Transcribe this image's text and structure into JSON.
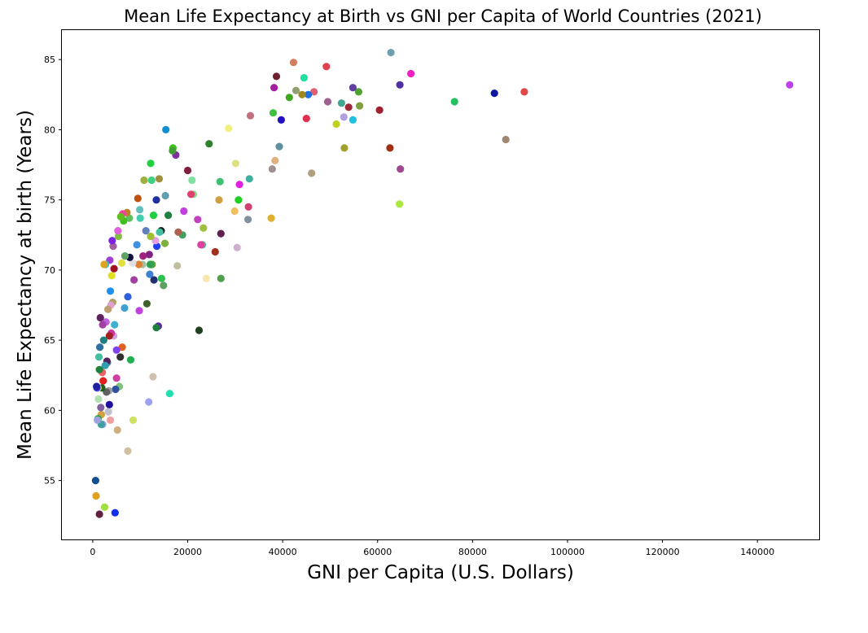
{
  "chart_data": {
    "type": "scatter",
    "title": "Mean Life Expectancy at Birth vs GNI per Capita of World Countries (2021)",
    "xlabel": "GNI per Capita (U.S. Dollars)",
    "ylabel": "Mean Life Expectancy at birth (Years)",
    "xlim": [
      -6500,
      153000
    ],
    "ylim": [
      50.8,
      87.1
    ],
    "xticks": [
      0,
      20000,
      40000,
      60000,
      80000,
      100000,
      120000,
      140000
    ],
    "yticks": [
      55,
      60,
      65,
      70,
      75,
      80,
      85
    ],
    "grid": false,
    "legend": "none",
    "points": [
      {
        "x": 146800,
        "y": 83.2,
        "color": "#c040e8"
      },
      {
        "x": 90900,
        "y": 82.7,
        "color": "#e04848"
      },
      {
        "x": 87000,
        "y": 79.3,
        "color": "#a08870"
      },
      {
        "x": 84600,
        "y": 82.6,
        "color": "#1018a0"
      },
      {
        "x": 76200,
        "y": 82.0,
        "color": "#22c060"
      },
      {
        "x": 67000,
        "y": 84.0,
        "color": "#f020c0"
      },
      {
        "x": 64700,
        "y": 83.2,
        "color": "#5030a0"
      },
      {
        "x": 64800,
        "y": 77.2,
        "color": "#a04890"
      },
      {
        "x": 64600,
        "y": 74.7,
        "color": "#a8e840"
      },
      {
        "x": 62800,
        "y": 85.5,
        "color": "#70a0b0"
      },
      {
        "x": 62600,
        "y": 78.7,
        "color": "#a03010"
      },
      {
        "x": 60400,
        "y": 81.4,
        "color": "#a02030"
      },
      {
        "x": 56000,
        "y": 82.7,
        "color": "#50a030"
      },
      {
        "x": 56200,
        "y": 81.7,
        "color": "#80a040"
      },
      {
        "x": 54800,
        "y": 83.0,
        "color": "#6040a0"
      },
      {
        "x": 54800,
        "y": 80.7,
        "color": "#20c0e0"
      },
      {
        "x": 53900,
        "y": 81.6,
        "color": "#a02838"
      },
      {
        "x": 52900,
        "y": 80.9,
        "color": "#b0a0e0"
      },
      {
        "x": 52400,
        "y": 81.9,
        "color": "#40a890"
      },
      {
        "x": 53000,
        "y": 78.7,
        "color": "#a0a030"
      },
      {
        "x": 51300,
        "y": 80.4,
        "color": "#c0d020"
      },
      {
        "x": 49500,
        "y": 82.0,
        "color": "#a06090"
      },
      {
        "x": 49200,
        "y": 84.5,
        "color": "#e04050"
      },
      {
        "x": 46600,
        "y": 82.7,
        "color": "#e06070"
      },
      {
        "x": 46100,
        "y": 76.9,
        "color": "#b0a080"
      },
      {
        "x": 45400,
        "y": 82.5,
        "color": "#2070e0"
      },
      {
        "x": 45000,
        "y": 80.8,
        "color": "#e03050"
      },
      {
        "x": 44500,
        "y": 83.7,
        "color": "#20e0a0"
      },
      {
        "x": 44100,
        "y": 82.5,
        "color": "#a08820"
      },
      {
        "x": 42800,
        "y": 82.8,
        "color": "#90a070"
      },
      {
        "x": 42300,
        "y": 84.8,
        "color": "#d08060"
      },
      {
        "x": 41400,
        "y": 82.3,
        "color": "#40a820"
      },
      {
        "x": 39700,
        "y": 80.7,
        "color": "#2010c0"
      },
      {
        "x": 39300,
        "y": 78.8,
        "color": "#6090a0"
      },
      {
        "x": 38700,
        "y": 83.8,
        "color": "#702030"
      },
      {
        "x": 38200,
        "y": 83.0,
        "color": "#a020a0"
      },
      {
        "x": 38000,
        "y": 81.2,
        "color": "#40c040"
      },
      {
        "x": 38400,
        "y": 77.8,
        "color": "#e0b080"
      },
      {
        "x": 37800,
        "y": 77.2,
        "color": "#a09090"
      },
      {
        "x": 37600,
        "y": 73.7,
        "color": "#e0b030"
      },
      {
        "x": 33200,
        "y": 81.0,
        "color": "#c07080"
      },
      {
        "x": 33000,
        "y": 76.5,
        "color": "#40b0a0"
      },
      {
        "x": 32800,
        "y": 74.5,
        "color": "#d04070"
      },
      {
        "x": 32700,
        "y": 73.6,
        "color": "#8090a0"
      },
      {
        "x": 30900,
        "y": 76.1,
        "color": "#e020e0"
      },
      {
        "x": 30700,
        "y": 75.0,
        "color": "#20d020"
      },
      {
        "x": 30400,
        "y": 71.6,
        "color": "#d0b0d0"
      },
      {
        "x": 30100,
        "y": 77.6,
        "color": "#e0e080"
      },
      {
        "x": 29900,
        "y": 74.2,
        "color": "#f0c060"
      },
      {
        "x": 28600,
        "y": 80.1,
        "color": "#f0f080"
      },
      {
        "x": 26800,
        "y": 76.3,
        "color": "#40c070"
      },
      {
        "x": 26600,
        "y": 75.0,
        "color": "#d0a040"
      },
      {
        "x": 27000,
        "y": 72.6,
        "color": "#602050"
      },
      {
        "x": 27000,
        "y": 69.4,
        "color": "#50a050"
      },
      {
        "x": 25800,
        "y": 71.3,
        "color": "#a03020"
      },
      {
        "x": 24500,
        "y": 79.0,
        "color": "#308030"
      },
      {
        "x": 23900,
        "y": 69.4,
        "color": "#f8e8b0"
      },
      {
        "x": 23300,
        "y": 73.0,
        "color": "#a0c040"
      },
      {
        "x": 23100,
        "y": 71.8,
        "color": "#40c080"
      },
      {
        "x": 22800,
        "y": 71.8,
        "color": "#e040a0"
      },
      {
        "x": 22400,
        "y": 65.7,
        "color": "#204020"
      },
      {
        "x": 22100,
        "y": 73.6,
        "color": "#c040c0"
      },
      {
        "x": 21200,
        "y": 75.4,
        "color": "#80e080"
      },
      {
        "x": 20900,
        "y": 76.4,
        "color": "#80e0a0"
      },
      {
        "x": 20700,
        "y": 75.4,
        "color": "#e04070"
      },
      {
        "x": 20000,
        "y": 77.1,
        "color": "#802040"
      },
      {
        "x": 19200,
        "y": 74.2,
        "color": "#c040e0"
      },
      {
        "x": 18900,
        "y": 72.5,
        "color": "#40a060"
      },
      {
        "x": 18000,
        "y": 72.7,
        "color": "#b06050"
      },
      {
        "x": 17800,
        "y": 70.3,
        "color": "#c0c0a0"
      },
      {
        "x": 17500,
        "y": 78.2,
        "color": "#8030a0"
      },
      {
        "x": 16900,
        "y": 78.7,
        "color": "#40c020"
      },
      {
        "x": 16800,
        "y": 78.5,
        "color": "#40a030"
      },
      {
        "x": 16200,
        "y": 61.2,
        "color": "#20e0b0"
      },
      {
        "x": 15900,
        "y": 73.9,
        "color": "#208040"
      },
      {
        "x": 15400,
        "y": 80.0,
        "color": "#1090d0"
      },
      {
        "x": 15300,
        "y": 75.3,
        "color": "#60a0b0"
      },
      {
        "x": 15200,
        "y": 71.9,
        "color": "#80b040"
      },
      {
        "x": 14900,
        "y": 68.9,
        "color": "#60a060"
      },
      {
        "x": 14500,
        "y": 69.4,
        "color": "#30c050"
      },
      {
        "x": 14400,
        "y": 72.8,
        "color": "#102020"
      },
      {
        "x": 14100,
        "y": 72.7,
        "color": "#40c0a0"
      },
      {
        "x": 14000,
        "y": 76.5,
        "color": "#a09040"
      },
      {
        "x": 13800,
        "y": 66.0,
        "color": "#6020a0"
      },
      {
        "x": 13400,
        "y": 65.9,
        "color": "#208040"
      },
      {
        "x": 13500,
        "y": 71.7,
        "color": "#2040f0"
      },
      {
        "x": 13400,
        "y": 75.0,
        "color": "#2030a0"
      },
      {
        "x": 13200,
        "y": 72.1,
        "color": "#e0a0e0"
      },
      {
        "x": 12900,
        "y": 69.3,
        "color": "#203070"
      },
      {
        "x": 12800,
        "y": 73.9,
        "color": "#20d040"
      },
      {
        "x": 12700,
        "y": 62.4,
        "color": "#d0c0b0"
      },
      {
        "x": 12500,
        "y": 70.4,
        "color": "#60a030"
      },
      {
        "x": 12400,
        "y": 76.4,
        "color": "#40d080"
      },
      {
        "x": 12200,
        "y": 77.6,
        "color": "#20d040"
      },
      {
        "x": 12200,
        "y": 72.4,
        "color": "#a0c030"
      },
      {
        "x": 12100,
        "y": 70.4,
        "color": "#30a050"
      },
      {
        "x": 12000,
        "y": 69.7,
        "color": "#4080d0"
      },
      {
        "x": 11900,
        "y": 71.1,
        "color": "#802080"
      },
      {
        "x": 11800,
        "y": 60.6,
        "color": "#a0a0f0"
      },
      {
        "x": 11400,
        "y": 67.6,
        "color": "#406030"
      },
      {
        "x": 11200,
        "y": 72.8,
        "color": "#6080c0"
      },
      {
        "x": 10800,
        "y": 76.4,
        "color": "#a0b040"
      },
      {
        "x": 10600,
        "y": 71.0,
        "color": "#a02080"
      },
      {
        "x": 10500,
        "y": 70.4,
        "color": "#a0c0a0"
      },
      {
        "x": 10000,
        "y": 73.7,
        "color": "#40d0b0"
      },
      {
        "x": 9900,
        "y": 74.3,
        "color": "#60c0c0"
      },
      {
        "x": 9800,
        "y": 67.1,
        "color": "#c040e0"
      },
      {
        "x": 9700,
        "y": 70.4,
        "color": "#e08030"
      },
      {
        "x": 9500,
        "y": 75.1,
        "color": "#c05010"
      },
      {
        "x": 9300,
        "y": 71.8,
        "color": "#4090e0"
      },
      {
        "x": 8700,
        "y": 69.3,
        "color": "#a040a0"
      },
      {
        "x": 8500,
        "y": 59.3,
        "color": "#d0e060"
      },
      {
        "x": 8400,
        "y": 70.5,
        "color": "#e0e0e0"
      },
      {
        "x": 8000,
        "y": 63.6,
        "color": "#20b050"
      },
      {
        "x": 7800,
        "y": 70.9,
        "color": "#101040"
      },
      {
        "x": 7700,
        "y": 73.7,
        "color": "#60c060"
      },
      {
        "x": 7400,
        "y": 68.1,
        "color": "#3060e0"
      },
      {
        "x": 7400,
        "y": 57.1,
        "color": "#d0c0a0"
      },
      {
        "x": 7200,
        "y": 74.1,
        "color": "#c08020"
      },
      {
        "x": 6800,
        "y": 71.0,
        "color": "#60a060"
      },
      {
        "x": 6700,
        "y": 67.3,
        "color": "#40a0d0"
      },
      {
        "x": 6500,
        "y": 73.5,
        "color": "#40c020"
      },
      {
        "x": 6300,
        "y": 74.0,
        "color": "#f040a0"
      },
      {
        "x": 6200,
        "y": 64.5,
        "color": "#e06020"
      },
      {
        "x": 6100,
        "y": 70.5,
        "color": "#e0e040"
      },
      {
        "x": 5900,
        "y": 73.8,
        "color": "#60c020"
      },
      {
        "x": 5800,
        "y": 63.8,
        "color": "#303030"
      },
      {
        "x": 5600,
        "y": 61.7,
        "color": "#80c080"
      },
      {
        "x": 5400,
        "y": 72.4,
        "color": "#80c040"
      },
      {
        "x": 5300,
        "y": 72.8,
        "color": "#e060e0"
      },
      {
        "x": 5200,
        "y": 58.6,
        "color": "#d0b080"
      },
      {
        "x": 5000,
        "y": 62.3,
        "color": "#d040a0"
      },
      {
        "x": 5000,
        "y": 64.3,
        "color": "#8040f0"
      },
      {
        "x": 4800,
        "y": 61.5,
        "color": "#3050a0"
      },
      {
        "x": 4700,
        "y": 52.7,
        "color": "#1030f0"
      },
      {
        "x": 4600,
        "y": 66.1,
        "color": "#40b0d0"
      },
      {
        "x": 4500,
        "y": 70.1,
        "color": "#a01020"
      },
      {
        "x": 4400,
        "y": 65.3,
        "color": "#d0a0e0"
      },
      {
        "x": 4300,
        "y": 71.7,
        "color": "#a060a0"
      },
      {
        "x": 4200,
        "y": 67.7,
        "color": "#b0a060"
      },
      {
        "x": 4100,
        "y": 72.1,
        "color": "#8020e0"
      },
      {
        "x": 4000,
        "y": 69.6,
        "color": "#e0e020"
      },
      {
        "x": 3900,
        "y": 65.5,
        "color": "#d030a0"
      },
      {
        "x": 3800,
        "y": 67.5,
        "color": "#e0a0d0"
      },
      {
        "x": 3700,
        "y": 59.3,
        "color": "#f0a0a0"
      },
      {
        "x": 3700,
        "y": 68.5,
        "color": "#2090f0"
      },
      {
        "x": 3600,
        "y": 70.7,
        "color": "#a040d0"
      },
      {
        "x": 3500,
        "y": 65.3,
        "color": "#a02020"
      },
      {
        "x": 3500,
        "y": 60.4,
        "color": "#2010a0"
      },
      {
        "x": 3400,
        "y": 61.4,
        "color": "#a0a0a0"
      },
      {
        "x": 3300,
        "y": 59.9,
        "color": "#c0c0d0"
      },
      {
        "x": 3200,
        "y": 67.2,
        "color": "#c0a070"
      },
      {
        "x": 3100,
        "y": 63.4,
        "color": "#6090b0"
      },
      {
        "x": 3000,
        "y": 63.5,
        "color": "#502060"
      },
      {
        "x": 2900,
        "y": 61.3,
        "color": "#606060"
      },
      {
        "x": 2800,
        "y": 66.3,
        "color": "#c060e0"
      },
      {
        "x": 2700,
        "y": 70.4,
        "color": "#20c0e0"
      },
      {
        "x": 2600,
        "y": 63.2,
        "color": "#30a0b0"
      },
      {
        "x": 2500,
        "y": 53.1,
        "color": "#a0e040"
      },
      {
        "x": 2400,
        "y": 70.4,
        "color": "#e0a020"
      },
      {
        "x": 2300,
        "y": 65.0,
        "color": "#208080"
      },
      {
        "x": 2200,
        "y": 62.1,
        "color": "#e02020"
      },
      {
        "x": 2100,
        "y": 59.0,
        "color": "#a0a0f0"
      },
      {
        "x": 2100,
        "y": 66.1,
        "color": "#a040a0"
      },
      {
        "x": 2000,
        "y": 62.7,
        "color": "#f06060"
      },
      {
        "x": 1900,
        "y": 61.6,
        "color": "#206020"
      },
      {
        "x": 1800,
        "y": 59.0,
        "color": "#40a0a0"
      },
      {
        "x": 1800,
        "y": 59.7,
        "color": "#d0a040"
      },
      {
        "x": 1700,
        "y": 60.2,
        "color": "#8060a0"
      },
      {
        "x": 1600,
        "y": 66.6,
        "color": "#602060"
      },
      {
        "x": 1500,
        "y": 64.5,
        "color": "#3070a0"
      },
      {
        "x": 1400,
        "y": 62.9,
        "color": "#208040"
      },
      {
        "x": 1400,
        "y": 52.6,
        "color": "#602040"
      },
      {
        "x": 1300,
        "y": 63.8,
        "color": "#40c0a0"
      },
      {
        "x": 1200,
        "y": 60.8,
        "color": "#b0e0b0"
      },
      {
        "x": 1100,
        "y": 61.6,
        "color": "#e0e080"
      },
      {
        "x": 1100,
        "y": 59.4,
        "color": "#20a040"
      },
      {
        "x": 1000,
        "y": 59.3,
        "color": "#a0a0e0"
      },
      {
        "x": 900,
        "y": 61.6,
        "color": "#4040e0"
      },
      {
        "x": 800,
        "y": 61.7,
        "color": "#2020a0"
      },
      {
        "x": 700,
        "y": 53.9,
        "color": "#e0a020"
      },
      {
        "x": 600,
        "y": 55.0,
        "color": "#105090"
      }
    ]
  }
}
